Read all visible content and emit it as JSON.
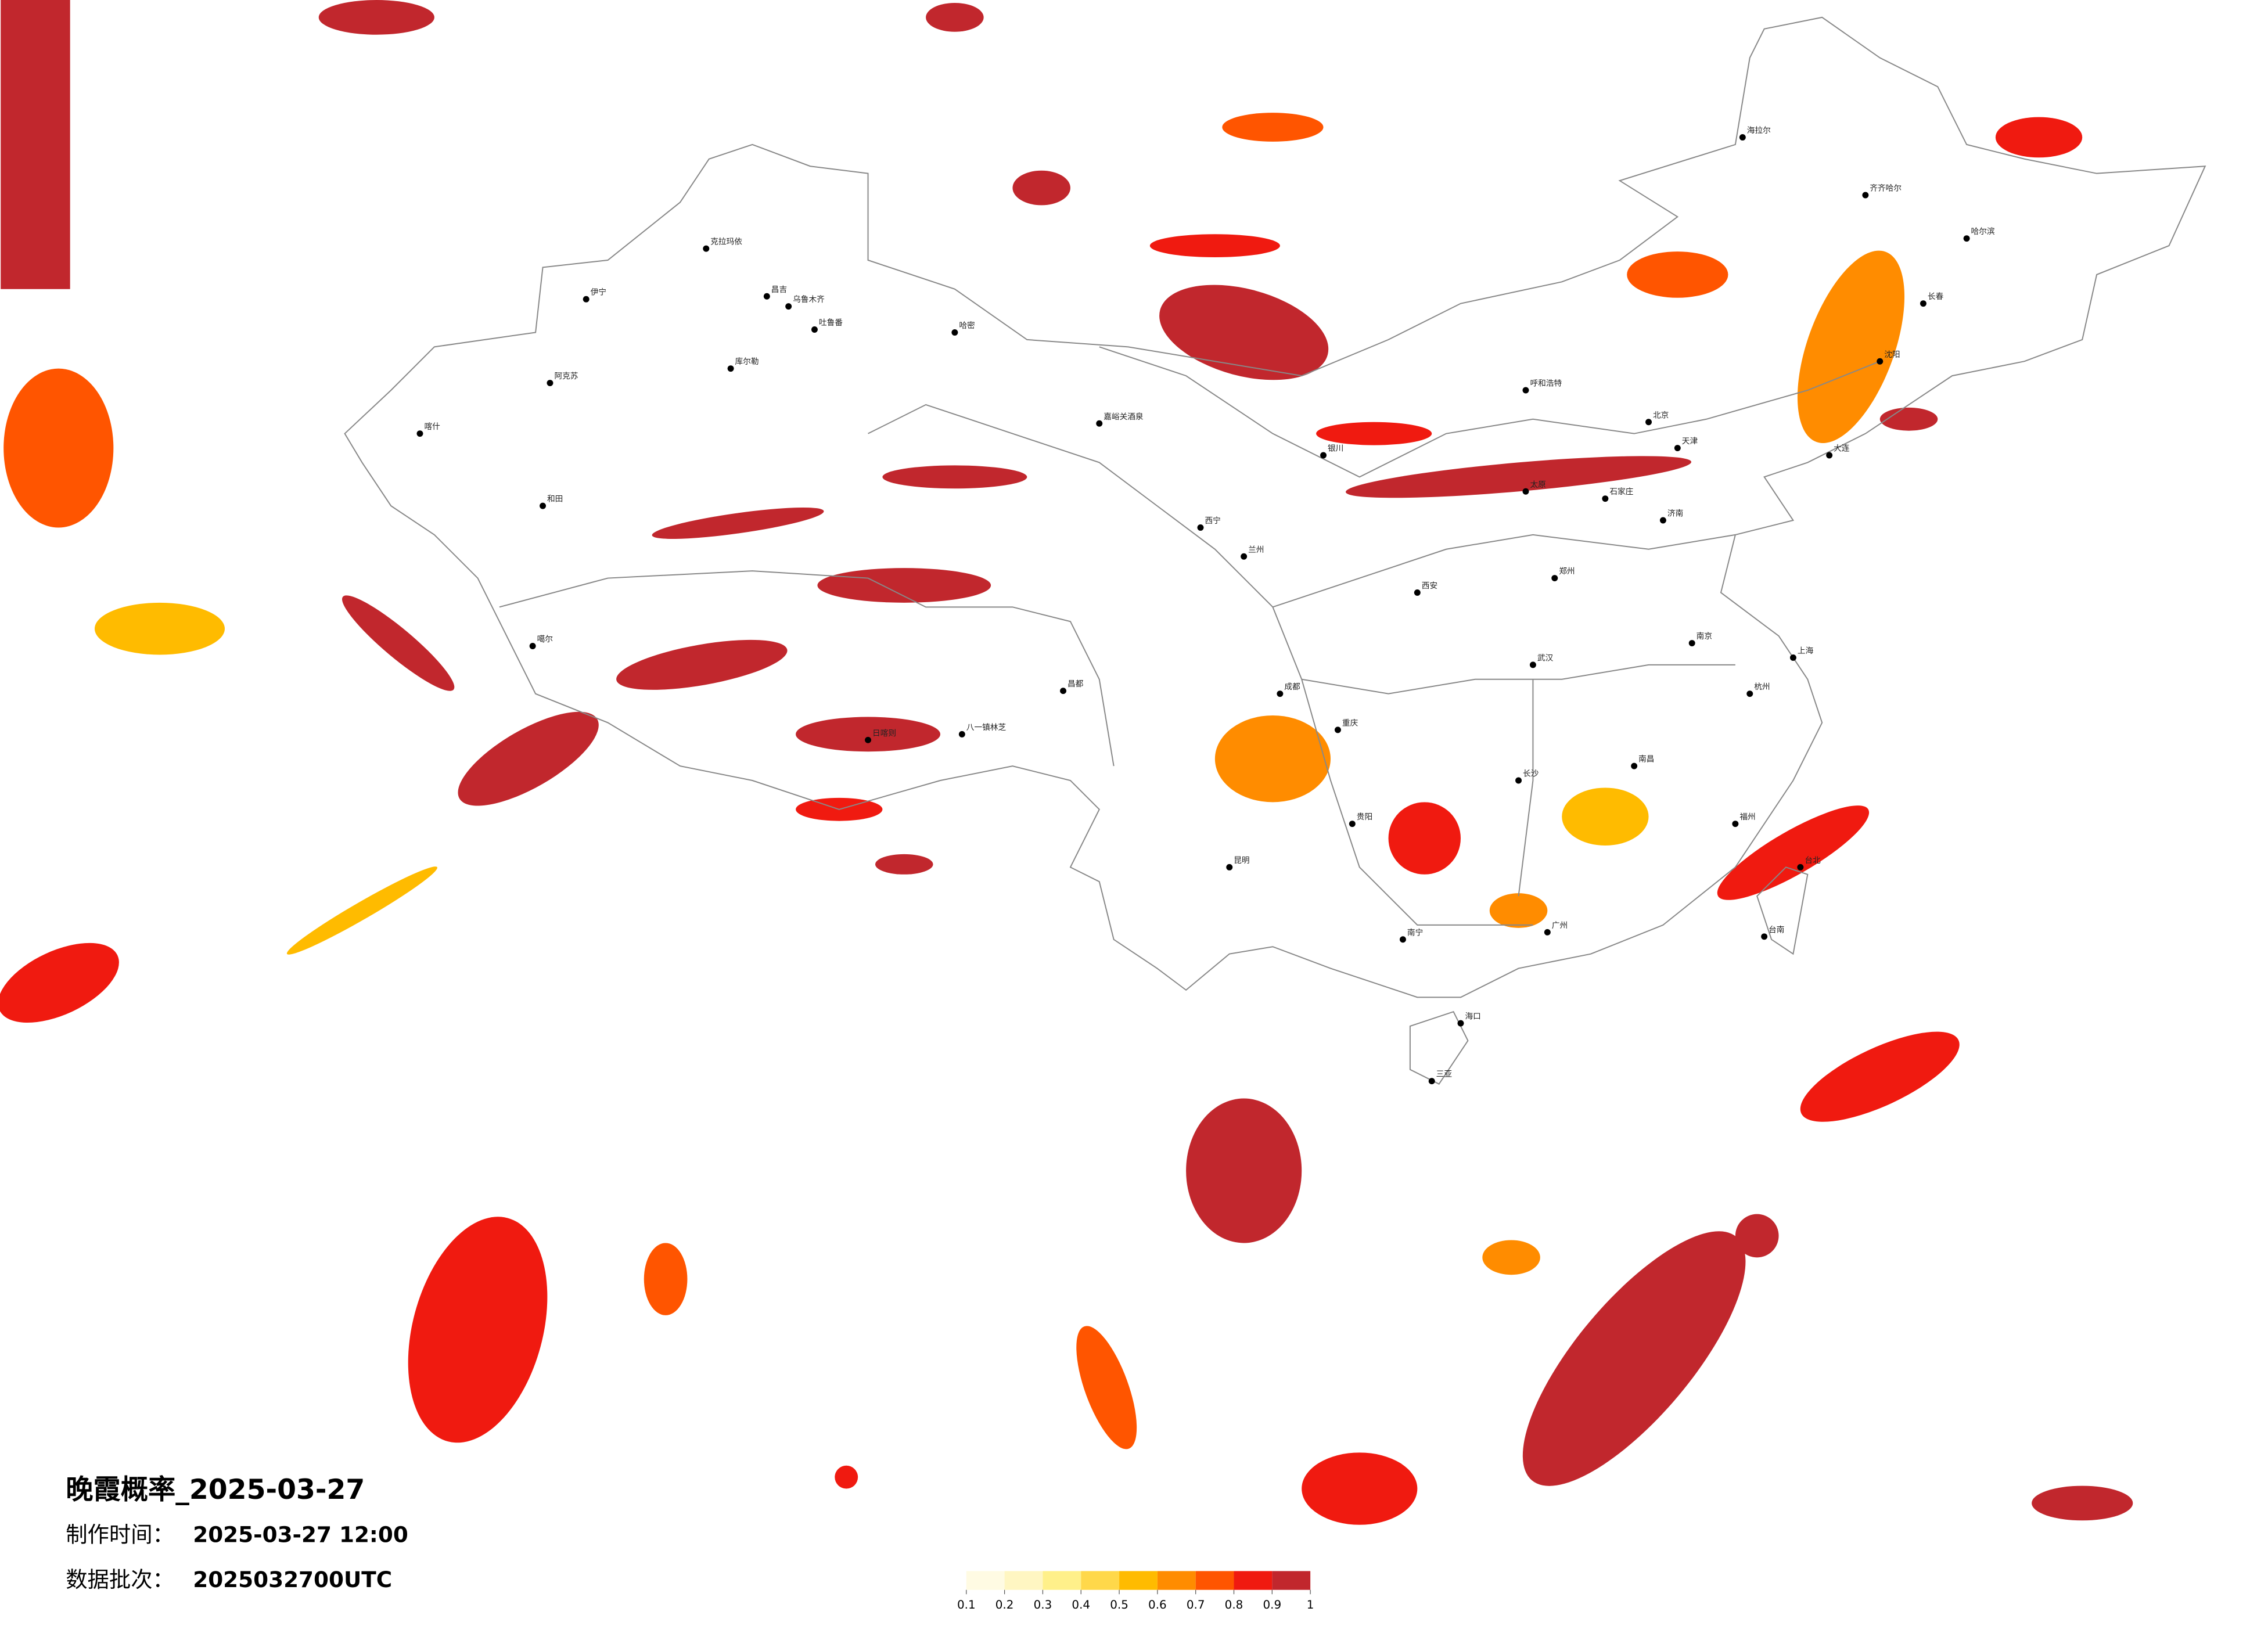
{
  "title": "晚霞概率_2025-03-27",
  "production": {
    "label": "制作时间：",
    "value": "2025-03-27 12:00"
  },
  "batch": {
    "label": "数据批次：",
    "value": "2025032700UTC"
  },
  "legend": {
    "ticks": [
      0.1,
      0.2,
      0.3,
      0.4,
      0.5,
      0.6,
      0.7,
      0.8,
      0.9,
      1
    ],
    "colors": [
      "#fffbe3",
      "#fff6c2",
      "#fff08a",
      "#ffd84a",
      "#ffbb00",
      "#ff8c00",
      "#ff5500",
      "#f01a10",
      "#c1272d"
    ]
  },
  "cities": [
    "克拉玛依",
    "伊宁",
    "昌吉",
    "乌鲁木齐",
    "吐鲁番",
    "哈密",
    "库尔勒",
    "阿克苏",
    "喀什",
    "和田",
    "噶尔",
    "日喀则",
    "八一镇林芝",
    "昌都",
    "嘉峪关酒泉",
    "西宁",
    "兰州",
    "银川",
    "呼和浩特",
    "北京",
    "天津",
    "石家庄",
    "济南",
    "郑州",
    "武汉",
    "长沙",
    "南昌",
    "杭州",
    "上海",
    "南京",
    "福州",
    "广州",
    "南宁",
    "海口",
    "昆明",
    "贵阳",
    "成都",
    "重庆",
    "西安",
    "太原",
    "哈尔滨",
    "长春",
    "沈阳",
    "大连",
    "齐齐哈尔",
    "海拉尔",
    "台北",
    "台南",
    "三亚"
  ]
}
